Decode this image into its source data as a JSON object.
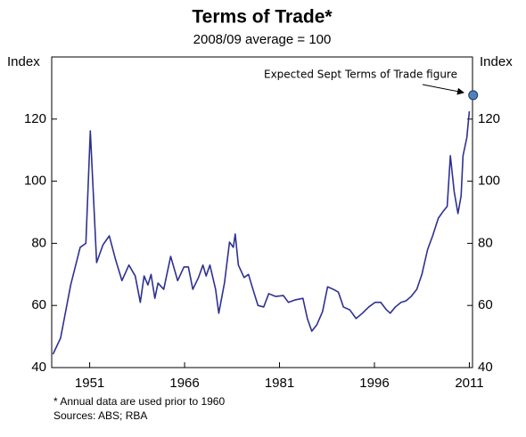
{
  "chart_data": {
    "type": "line",
    "title": "Terms of Trade*",
    "subtitle": "2008/09 average = 100",
    "y_label": "Index",
    "y2_label": "Index",
    "x": [
      1945.2,
      1946.4,
      1948,
      1949.5,
      1950.4,
      1951.1,
      1952.1,
      1953.1,
      1954.1,
      1955.1,
      1956.1,
      1957.2,
      1958.2,
      1959,
      1959.6,
      1960.2,
      1960.7,
      1961.3,
      1961.8,
      1962.7,
      1963.8,
      1964.9,
      1965.9,
      1966.6,
      1967.3,
      1968.2,
      1968.9,
      1969.4,
      1970,
      1970.9,
      1971.4,
      1972.3,
      1973.1,
      1973.7,
      1974,
      1974.5,
      1975.4,
      1976.1,
      1976.8,
      1977.6,
      1978.5,
      1979.3,
      1980.4,
      1981.6,
      1982.4,
      1983.5,
      1984.7,
      1985.4,
      1986.1,
      1986.9,
      1987.8,
      1988.6,
      1989.5,
      1990.3,
      1991.1,
      1992.1,
      1993.1,
      1994.1,
      1995.1,
      1996.1,
      1997,
      1997.9,
      1998.5,
      1999.3,
      2000.2,
      2001,
      2001.8,
      2002.7,
      2003.5,
      2004.4,
      2005.2,
      2006.1,
      2006.9,
      2007.5,
      2008,
      2008.6,
      2009.2,
      2009.7,
      2010,
      2010.6,
      2011
    ],
    "series": [
      {
        "name": "Terms of Trade",
        "color": "#2e3192",
        "values": [
          44.3,
          49.5,
          66.6,
          78.7,
          80,
          116.2,
          73.8,
          79.5,
          82.4,
          74.7,
          68,
          73,
          69.5,
          61,
          69.5,
          66.6,
          70,
          62.3,
          67.2,
          65.2,
          75.8,
          68,
          72.4,
          72.4,
          65.2,
          69,
          73,
          69.5,
          73,
          65.2,
          57.5,
          67.2,
          80.4,
          78.7,
          83,
          73,
          69,
          70,
          65.2,
          60,
          59.5,
          63.8,
          62.9,
          63.2,
          61,
          61.8,
          62.3,
          55.8,
          51.7,
          53.8,
          58,
          66,
          65.2,
          64.3,
          59.5,
          58.6,
          55.8,
          57.5,
          59.5,
          61,
          61,
          58.6,
          57.5,
          59.5,
          61,
          61.5,
          62.9,
          65.2,
          70,
          78,
          82.4,
          88.1,
          90.4,
          91.9,
          108.2,
          96.7,
          89.6,
          95.3,
          108.2,
          114,
          122.5
        ]
      }
    ],
    "highlight": {
      "x": 2011.6,
      "value": 127.7,
      "color": "#4f81bd"
    },
    "annotation": "Expected Sept Terms of Trade figure",
    "xlim": [
      1945,
      2011.5
    ],
    "xticks": [
      1951,
      1966,
      1981,
      1996,
      2011
    ],
    "ylim": [
      40,
      140
    ],
    "yticks": [
      40,
      60,
      80,
      100,
      120
    ],
    "y2lim": [
      40,
      140
    ],
    "y2ticks": [
      40,
      60,
      80,
      100,
      120
    ],
    "grid": false,
    "footnote": "*   Annual data are used prior to 1960",
    "source": "Sources: ABS; RBA"
  }
}
